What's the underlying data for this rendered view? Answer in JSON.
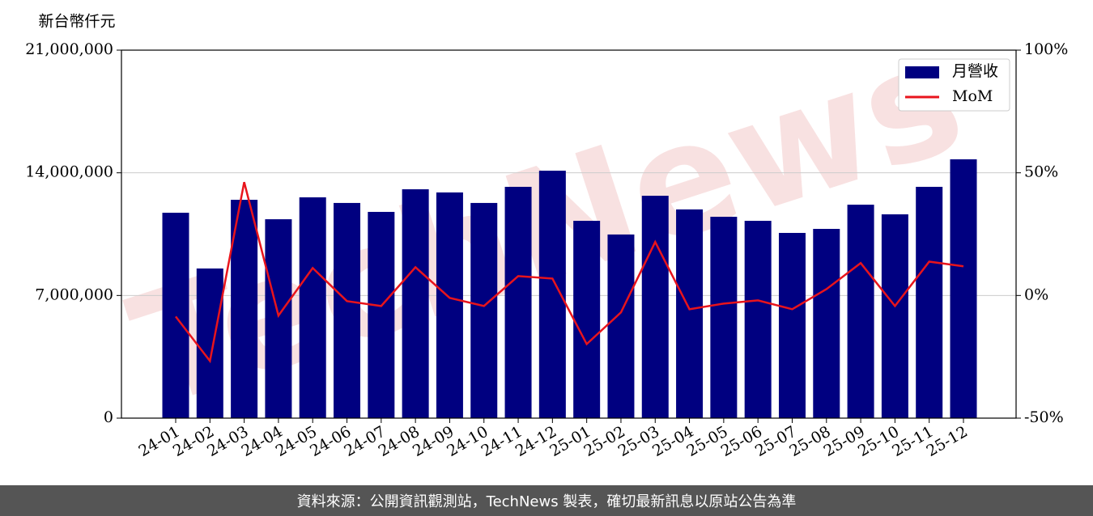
{
  "chart_data": {
    "type": "bar_line",
    "y_unit_label": "新台幣仟元",
    "watermark": "TechNews",
    "footer": "資料來源：公開資訊觀測站，TechNews 製表，確切最新訊息以原站公告為準",
    "categories": [
      "24-01",
      "24-02",
      "24-03",
      "24-04",
      "24-05",
      "24-06",
      "24-07",
      "24-08",
      "24-09",
      "24-10",
      "24-11",
      "24-12",
      "25-01",
      "25-02",
      "25-03",
      "25-04",
      "25-05",
      "25-06",
      "25-07",
      "25-08",
      "25-09",
      "25-10",
      "25-11",
      "25-12"
    ],
    "series": [
      {
        "name": "月營收",
        "color": "#000080",
        "kind": "bar",
        "values": [
          11720000,
          8540000,
          12460000,
          11350000,
          12600000,
          12280000,
          11770000,
          13060000,
          12880000,
          12280000,
          13200000,
          14120000,
          11260000,
          10480000,
          12690000,
          11910000,
          11490000,
          11260000,
          10570000,
          10800000,
          12180000,
          11630000,
          13200000,
          14770000
        ]
      },
      {
        "name": "MoM",
        "color": "#e8141c",
        "kind": "line",
        "axis": "y2",
        "values": [
          -8.6,
          -26.7,
          46.2,
          -8.2,
          11.2,
          -2.3,
          -4.3,
          11.5,
          -1.0,
          -4.3,
          7.9,
          6.9,
          -19.8,
          -6.9,
          21.8,
          -5.6,
          -3.3,
          -2.0,
          -5.6,
          2.6,
          13.2,
          -4.3,
          13.8,
          11.9
        ]
      }
    ],
    "ylim": [
      0,
      21000000
    ],
    "yticks": [
      0,
      {
        "value": 7000000,
        "label": "7,000,000"
      },
      {
        "value": 14000000,
        "label": "14,000,000"
      },
      {
        "value": 21000000,
        "label": "21,000,000"
      }
    ],
    "y2lim": [
      -50,
      100
    ],
    "y2ticks": [
      {
        "value": -50,
        "label": "-50%"
      },
      {
        "value": 0,
        "label": "0%"
      },
      {
        "value": 50,
        "label": "50%"
      },
      {
        "value": 100,
        "label": "100%"
      }
    ],
    "grid": true,
    "legend": "upper right"
  }
}
